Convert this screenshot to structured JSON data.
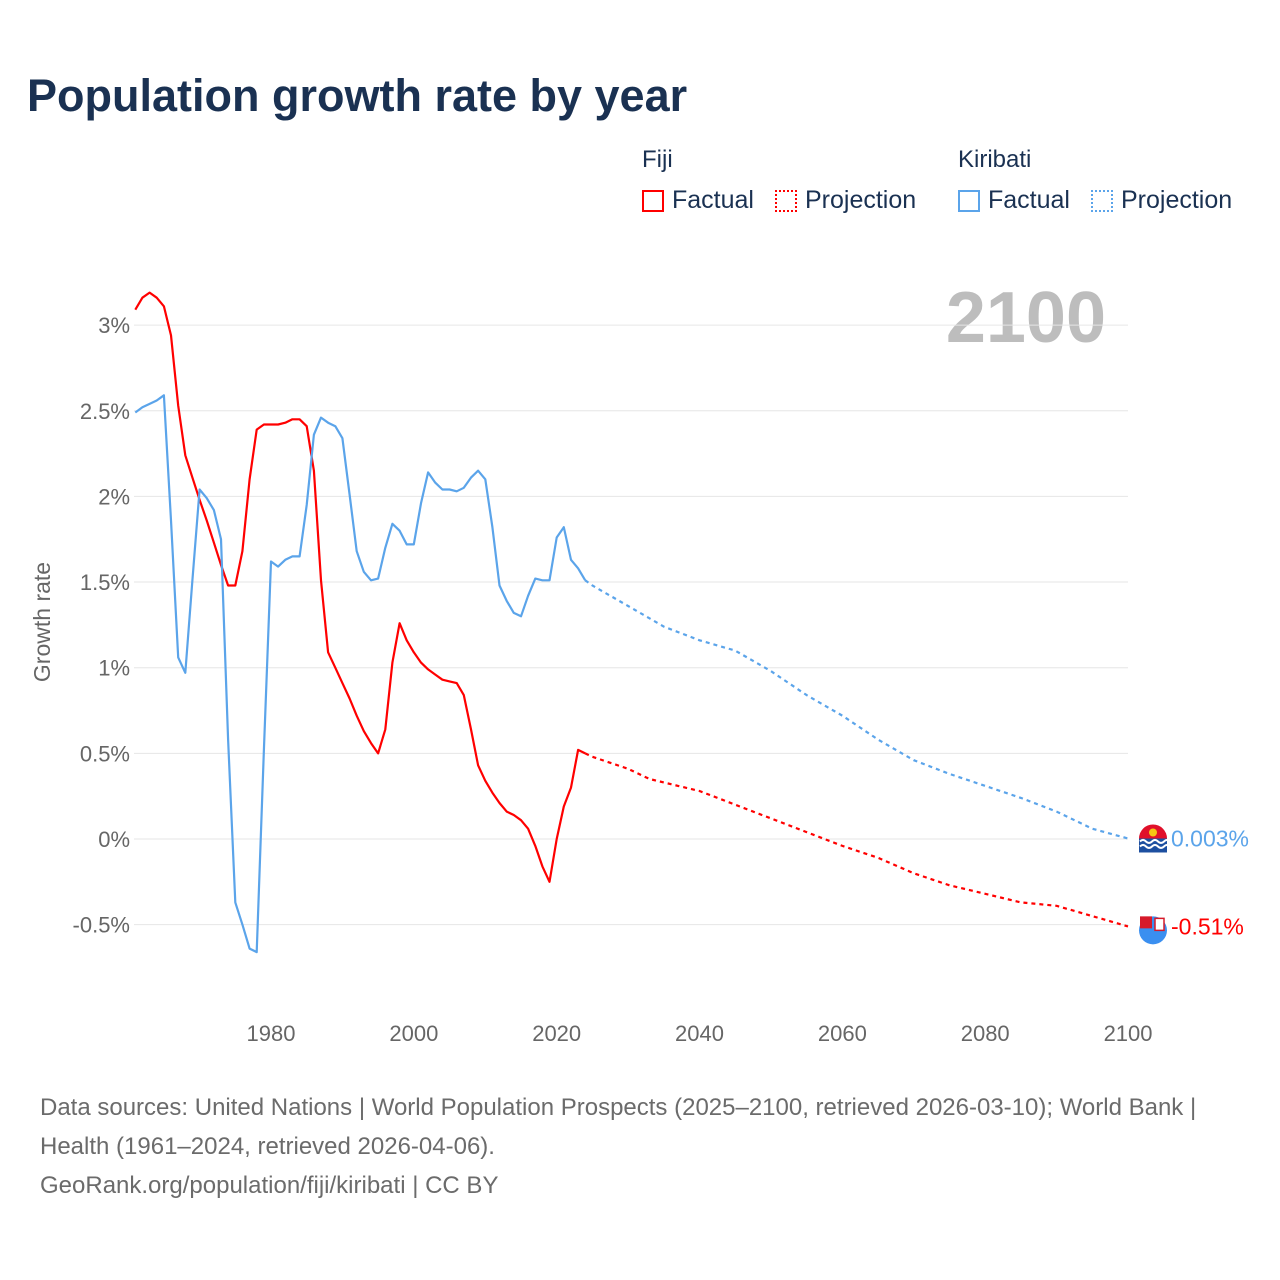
{
  "title": "Population growth rate by year",
  "legend": {
    "groups": [
      {
        "name": "Fiji",
        "color": "#ff0000",
        "factual": "Factual",
        "projection": "Projection"
      },
      {
        "name": "Kiribati",
        "color": "#5ba4ea",
        "factual": "Factual",
        "projection": "Projection"
      }
    ]
  },
  "chart_data": {
    "type": "line",
    "title": "Population growth rate by year",
    "ylabel": "Growth rate",
    "xlabel": "",
    "year_label": "2100",
    "ylim": [
      -0.75,
      3.3
    ],
    "xlim": [
      1961,
      2100
    ],
    "y_ticks": [
      -0.5,
      0,
      0.5,
      1,
      1.5,
      2,
      2.5,
      3
    ],
    "y_tick_labels": [
      "-0.5%",
      "0%",
      "0.5%",
      "1%",
      "1.5%",
      "2%",
      "2.5%",
      "3%"
    ],
    "x_ticks": [
      1980,
      2000,
      2020,
      2040,
      2060,
      2080,
      2100
    ],
    "x_tick_labels": [
      "1980",
      "2000",
      "2020",
      "2040",
      "2060",
      "2080",
      "2100"
    ],
    "grid": true,
    "legend_position": "top-right",
    "series": [
      {
        "name": "Fiji",
        "color": "#ff0000",
        "end_label": "-0.51%",
        "factual": {
          "start_year": 1961,
          "values": [
            3.09,
            3.16,
            3.19,
            3.16,
            3.11,
            2.94,
            2.53,
            2.24,
            2.11,
            1.98,
            1.86,
            1.73,
            1.6,
            1.48,
            1.48,
            1.68,
            2.1,
            2.39,
            2.42,
            2.42,
            2.42,
            2.43,
            2.45,
            2.45,
            2.41,
            2.15,
            1.51,
            1.09,
            1.0,
            0.91,
            0.82,
            0.72,
            0.63,
            0.56,
            0.5,
            0.64,
            1.03,
            1.26,
            1.16,
            1.09,
            1.03,
            0.99,
            0.96,
            0.93,
            0.92,
            0.91,
            0.84,
            0.64,
            0.43,
            0.34,
            0.27,
            0.21,
            0.16,
            0.14,
            0.11,
            0.06,
            -0.04,
            -0.16,
            -0.25,
            0.0,
            0.19,
            0.3,
            0.52,
            0.5
          ]
        },
        "projection": {
          "years": [
            2024,
            2025,
            2030,
            2033,
            2037,
            2040,
            2045,
            2050,
            2055,
            2060,
            2065,
            2070,
            2075,
            2080,
            2085,
            2090,
            2095,
            2100
          ],
          "values": [
            0.5,
            0.48,
            0.41,
            0.35,
            0.31,
            0.28,
            0.2,
            0.12,
            0.04,
            -0.04,
            -0.11,
            -0.2,
            -0.27,
            -0.32,
            -0.37,
            -0.39,
            -0.45,
            -0.51
          ]
        }
      },
      {
        "name": "Kiribati",
        "color": "#5ba4ea",
        "end_label": "0.003%",
        "factual": {
          "start_year": 1961,
          "values": [
            2.49,
            2.52,
            2.54,
            2.56,
            2.59,
            1.86,
            1.06,
            0.97,
            1.51,
            2.04,
            1.99,
            1.92,
            1.75,
            0.58,
            -0.37,
            -0.5,
            -0.64,
            -0.66,
            0.52,
            1.62,
            1.59,
            1.63,
            1.65,
            1.65,
            1.95,
            2.36,
            2.46,
            2.43,
            2.41,
            2.34,
            2.01,
            1.68,
            1.56,
            1.51,
            1.52,
            1.7,
            1.84,
            1.8,
            1.72,
            1.72,
            1.96,
            2.14,
            2.08,
            2.04,
            2.04,
            2.03,
            2.05,
            2.11,
            2.15,
            2.1,
            1.82,
            1.48,
            1.39,
            1.32,
            1.3,
            1.42,
            1.52,
            1.51,
            1.51,
            1.76,
            1.82,
            1.63,
            1.58,
            1.51
          ]
        },
        "projection": {
          "years": [
            2024,
            2025,
            2030,
            2035,
            2040,
            2045,
            2050,
            2055,
            2060,
            2065,
            2070,
            2075,
            2080,
            2085,
            2090,
            2095,
            2100
          ],
          "values": [
            1.51,
            1.48,
            1.36,
            1.24,
            1.16,
            1.1,
            0.98,
            0.84,
            0.72,
            0.58,
            0.46,
            0.38,
            0.31,
            0.24,
            0.16,
            0.06,
            0.003
          ]
        }
      }
    ]
  },
  "source": {
    "line1": "Data sources: United Nations | World Population Prospects (2025–2100, retrieved 2026-03-10); World Bank | Health (1961–2024, retrieved 2026-04-06).",
    "line2": "GeoRank.org/population/fiji/kiribati | CC BY"
  }
}
